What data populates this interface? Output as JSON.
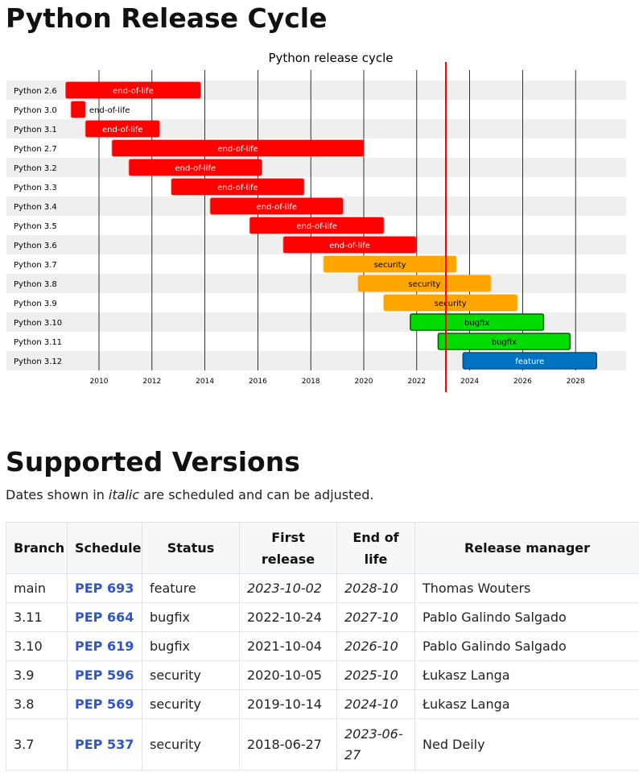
{
  "page": {
    "title": "Python Release Cycle",
    "section_title": "Supported Versions",
    "intro_prefix": "Dates shown in ",
    "intro_italic": "italic",
    "intro_suffix": " are scheduled and can be adjusted."
  },
  "colors": {
    "end-of-life": "#ff0000",
    "security": "#ffa500",
    "bugfix": "#00dd00",
    "feature": "#0073c0",
    "today_line": "#ff0000",
    "row_band": "#efefef"
  },
  "chart_data": {
    "type": "gantt",
    "title": "Python release cycle",
    "x_range": [
      2008.4,
      2030.3
    ],
    "x_ticks": [
      "2010",
      "2012",
      "2014",
      "2016",
      "2018",
      "2020",
      "2022",
      "2024",
      "2026",
      "2028"
    ],
    "today": 2023.1,
    "bars": [
      {
        "label": "Python 2.6",
        "start": 2008.75,
        "end": 2013.83,
        "status": "end-of-life"
      },
      {
        "label": "Python 3.0",
        "start": 2008.95,
        "end": 2009.48,
        "status": "end-of-life"
      },
      {
        "label": "Python 3.1",
        "start": 2009.5,
        "end": 2012.28,
        "status": "end-of-life"
      },
      {
        "label": "Python 2.7",
        "start": 2010.5,
        "end": 2019.99,
        "status": "end-of-life"
      },
      {
        "label": "Python 3.2",
        "start": 2011.14,
        "end": 2016.14,
        "status": "end-of-life"
      },
      {
        "label": "Python 3.3",
        "start": 2012.74,
        "end": 2017.74,
        "status": "end-of-life"
      },
      {
        "label": "Python 3.4",
        "start": 2014.21,
        "end": 2019.21,
        "status": "end-of-life"
      },
      {
        "label": "Python 3.5",
        "start": 2015.7,
        "end": 2020.75,
        "status": "end-of-life"
      },
      {
        "label": "Python 3.6",
        "start": 2016.97,
        "end": 2021.97,
        "status": "end-of-life"
      },
      {
        "label": "Python 3.7",
        "start": 2018.49,
        "end": 2023.49,
        "status": "security"
      },
      {
        "label": "Python 3.8",
        "start": 2019.79,
        "end": 2024.79,
        "status": "security"
      },
      {
        "label": "Python 3.9",
        "start": 2020.76,
        "end": 2025.79,
        "status": "security"
      },
      {
        "label": "Python 3.10",
        "start": 2021.76,
        "end": 2026.79,
        "status": "bugfix"
      },
      {
        "label": "Python 3.11",
        "start": 2022.81,
        "end": 2027.79,
        "status": "bugfix"
      },
      {
        "label": "Python 3.12",
        "start": 2023.75,
        "end": 2028.79,
        "status": "feature"
      }
    ]
  },
  "table": {
    "headers": [
      "Branch",
      "Schedule",
      "Status",
      "First release",
      "End of life",
      "Release manager"
    ],
    "rows": [
      {
        "branch": "main",
        "schedule": "PEP 693",
        "status": "feature",
        "first_release": "2023-10-02",
        "end_of_life": "2028-10",
        "manager": "Thomas Wouters"
      },
      {
        "branch": "3.11",
        "schedule": "PEP 664",
        "status": "bugfix",
        "first_release": "2022-10-24",
        "end_of_life": "2027-10",
        "manager": "Pablo Galindo Salgado"
      },
      {
        "branch": "3.10",
        "schedule": "PEP 619",
        "status": "bugfix",
        "first_release": "2021-10-04",
        "end_of_life": "2026-10",
        "manager": "Pablo Galindo Salgado"
      },
      {
        "branch": "3.9",
        "schedule": "PEP 596",
        "status": "security",
        "first_release": "2020-10-05",
        "end_of_life": "2025-10",
        "manager": "Łukasz Langa"
      },
      {
        "branch": "3.8",
        "schedule": "PEP 569",
        "status": "security",
        "first_release": "2019-10-14",
        "end_of_life": "2024-10",
        "manager": "Łukasz Langa"
      },
      {
        "branch": "3.7",
        "schedule": "PEP 537",
        "status": "security",
        "first_release": "2018-06-27",
        "end_of_life": "2023-06-27",
        "manager": "Ned Deily"
      }
    ]
  }
}
